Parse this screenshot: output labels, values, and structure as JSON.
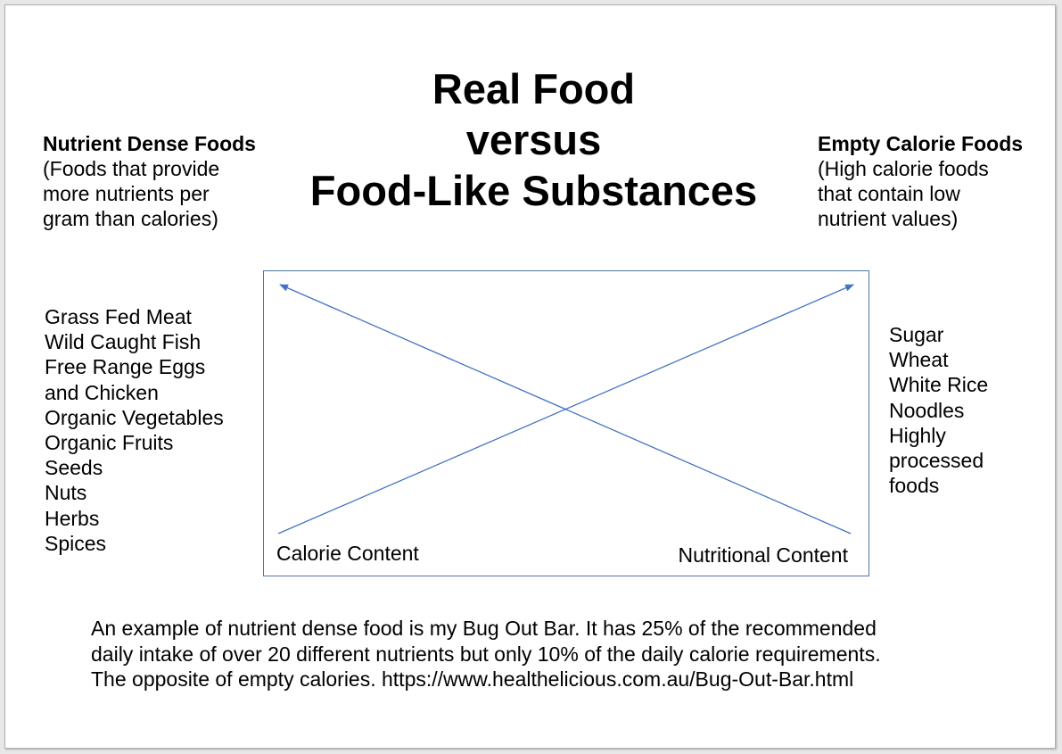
{
  "title": {
    "line1": "Real Food",
    "line2": "versus",
    "line3": "Food-Like Substances"
  },
  "left_heading": {
    "heading": "Nutrient Dense Foods",
    "lines": [
      "(Foods that provide",
      "more nutrients per",
      "gram than calories)"
    ]
  },
  "right_heading": {
    "heading": "Empty Calorie Foods",
    "lines": [
      "(High calorie foods",
      "that contain low",
      "nutrient values)"
    ]
  },
  "left_list": [
    "Grass Fed Meat",
    "Wild Caught Fish",
    "Free Range Eggs",
    "and Chicken",
    "Organic Vegetables",
    "Organic Fruits",
    "Seeds",
    "Nuts",
    "Herbs",
    "Spices"
  ],
  "right_list": [
    "Sugar",
    "Wheat",
    "White Rice",
    "Noodles",
    "Highly",
    "processed",
    "foods"
  ],
  "diagram": {
    "calorie_label": "Calorie Content",
    "nutrition_label": "Nutritional Content",
    "line_color": "#4472c4"
  },
  "footer": {
    "lines": [
      "An example of nutrient dense food is my Bug Out Bar. It has 25% of the recommended",
      "daily intake of over 20 different nutrients but only 10% of the daily calorie requirements.",
      "The opposite of empty calories. https://www.healthelicious.com.au/Bug-Out-Bar.html"
    ]
  }
}
